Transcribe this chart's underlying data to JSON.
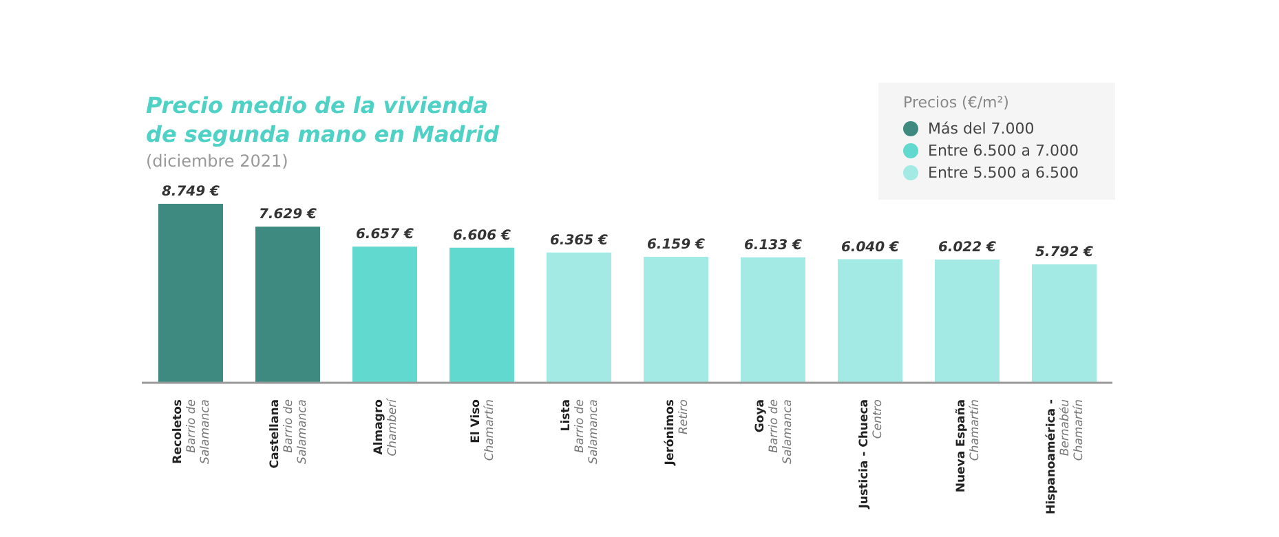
{
  "chart_data": {
    "type": "bar",
    "title": "Precio medio de la vivienda de segunda mano en Madrid",
    "subtitle": "(diciembre 2021)",
    "legend_title": "Precios (€/m²)",
    "categories": [
      "Recoletos\nBarrio de\nSalamanca",
      "Castellana\nBarrio de\nSalamanca",
      "Almagro\nChamberí",
      "El Viso\nChamartín",
      "Lista\nBarrio de\nSalamanca",
      "Jerónimos\nRetiro",
      "Goya\nBarrio de\nSalamanca",
      "Justicia - Chueca\nCentro",
      "Nueva España\nChamartín",
      "Hispanoamérica -\nBernabéu\nChamartín"
    ],
    "series": [
      {
        "name": "Más del 7.000",
        "color": "#3e8a80",
        "values": [
          8749,
          7629,
          null,
          null,
          null,
          null,
          null,
          null,
          null,
          null
        ],
        "value_labels": [
          "8.749 €",
          "7.629 €",
          null,
          null,
          null,
          null,
          null,
          null,
          null,
          null
        ]
      },
      {
        "name": "Entre 6.500 a 7.000",
        "color": "#62d9cf",
        "values": [
          null,
          null,
          6657,
          6606,
          null,
          null,
          null,
          null,
          null,
          null
        ],
        "value_labels": [
          null,
          null,
          "6.657 €",
          "6.606 €",
          null,
          null,
          null,
          null,
          null,
          null
        ]
      },
      {
        "name": "Entre 5.500 a 6.500",
        "color": "#a3eae5",
        "values": [
          null,
          null,
          null,
          null,
          6365,
          6159,
          6133,
          6040,
          6022,
          5792
        ],
        "value_labels": [
          null,
          null,
          null,
          null,
          "6.365 €",
          "6.159 €",
          "6.133 €",
          "6.040 €",
          "6.022 €",
          "5.792 €"
        ]
      }
    ],
    "stacked": true,
    "grid": false,
    "legend": "top right"
  }
}
